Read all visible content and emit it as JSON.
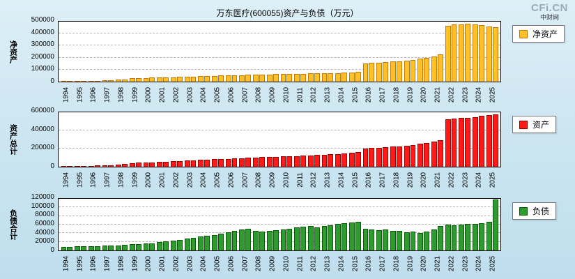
{
  "header": {
    "title": "万东医疗(600055)资产与负债（万元）",
    "watermark_line1": "CFi.CN",
    "watermark_line2": "中财网"
  },
  "chart_data": [
    {
      "type": "bar",
      "title": "净资产",
      "ylabel": "净资产",
      "legend": "净资产",
      "xlabel": "",
      "bar_color": "#FFC125",
      "bar_border": "#C87800",
      "ylim": [
        0,
        500000
      ],
      "yticks": [
        0,
        100000,
        200000,
        300000,
        400000,
        500000
      ],
      "grid": true,
      "legend_position": "right-top",
      "categories": [
        "1994",
        "1995",
        "1996",
        "1997",
        "1998",
        "1999",
        "2000",
        "2001",
        "2002",
        "2003",
        "2004",
        "2005",
        "2006",
        "2007",
        "2008",
        "2009",
        "2010",
        "2011",
        "2012",
        "2013",
        "2014",
        "2015",
        "2016",
        "2017",
        "2018",
        "2019",
        "2020",
        "2021",
        "2022",
        "2023",
        "2024",
        "2025"
      ],
      "values_per_category": 2,
      "series": [
        {
          "name": "净资产",
          "values": [
            4000,
            4500,
            5000,
            5500,
            6000,
            7000,
            9000,
            12000,
            15000,
            18000,
            28000,
            30000,
            32000,
            33000,
            34000,
            35000,
            37000,
            39000,
            41000,
            43000,
            45000,
            47000,
            49000,
            50000,
            51000,
            52000,
            54000,
            56000,
            58000,
            60000,
            61000,
            62000,
            63000,
            64000,
            65000,
            66000,
            67000,
            68000,
            69000,
            70000,
            72000,
            74000,
            76000,
            80000,
            150000,
            155000,
            158000,
            162000,
            166000,
            170000,
            175000,
            182000,
            190000,
            200000,
            210000,
            225000,
            465000,
            475000,
            478000,
            480000,
            478000,
            472000,
            462000,
            455000
          ]
        }
      ]
    },
    {
      "type": "bar",
      "title": "资产总计",
      "ylabel": "资产总计",
      "legend": "资产",
      "xlabel": "",
      "bar_color": "#FF1A1A",
      "bar_border": "#990000",
      "ylim": [
        0,
        600000
      ],
      "yticks": [
        0,
        200000,
        400000,
        600000
      ],
      "grid": true,
      "legend_position": "right-top",
      "categories": [
        "1994",
        "1995",
        "1996",
        "1997",
        "1998",
        "1999",
        "2000",
        "2001",
        "2002",
        "2003",
        "2004",
        "2005",
        "2006",
        "2007",
        "2008",
        "2009",
        "2010",
        "2011",
        "2012",
        "2013",
        "2014",
        "2015",
        "2016",
        "2017",
        "2018",
        "2019",
        "2020",
        "2021",
        "2022",
        "2023",
        "2024",
        "2025"
      ],
      "values_per_category": 2,
      "series": [
        {
          "name": "资产",
          "values": [
            7000,
            8000,
            9000,
            10000,
            11000,
            13000,
            15000,
            18000,
            22000,
            28000,
            42000,
            45000,
            48000,
            50000,
            53000,
            56000,
            60000,
            63000,
            67000,
            72000,
            76000,
            79000,
            82000,
            85000,
            88000,
            92000,
            96000,
            100000,
            103000,
            106000,
            108000,
            110000,
            113000,
            116000,
            119000,
            122000,
            125000,
            128000,
            132000,
            136000,
            140000,
            146000,
            152000,
            160000,
            198000,
            205000,
            210000,
            215000,
            220000,
            226000,
            233000,
            242000,
            252000,
            265000,
            278000,
            295000,
            520000,
            530000,
            535000,
            540000,
            545000,
            558000,
            568000,
            578000
          ]
        }
      ]
    },
    {
      "type": "bar",
      "title": "负债合计",
      "ylabel": "负债合计",
      "legend": "负债",
      "xlabel": "",
      "bar_color": "#2E9B2E",
      "bar_border": "#0A5A0A",
      "ylim": [
        0,
        120000
      ],
      "yticks": [
        0,
        20000,
        40000,
        60000,
        80000,
        100000,
        120000
      ],
      "grid": true,
      "legend_position": "right-top",
      "categories": [
        "1994",
        "1995",
        "1996",
        "1997",
        "1998",
        "1999",
        "2000",
        "2001",
        "2002",
        "2003",
        "2004",
        "2005",
        "2006",
        "2007",
        "2008",
        "2009",
        "2010",
        "2011",
        "2012",
        "2013",
        "2014",
        "2015",
        "2016",
        "2017",
        "2018",
        "2019",
        "2020",
        "2021",
        "2022",
        "2023",
        "2024",
        "2025"
      ],
      "values_per_category": 2,
      "series": [
        {
          "name": "负债",
          "values": [
            8000,
            8500,
            9000,
            9500,
            10000,
            10500,
            11000,
            11500,
            12000,
            13000,
            14000,
            15000,
            16000,
            17000,
            19000,
            21000,
            23000,
            25000,
            27000,
            30000,
            32000,
            34000,
            36000,
            39000,
            42000,
            45000,
            48000,
            50000,
            45000,
            44000,
            46000,
            47000,
            49000,
            51000,
            53000,
            55000,
            57000,
            54000,
            56000,
            59000,
            61000,
            63000,
            65000,
            67000,
            50000,
            49000,
            47000,
            48000,
            45000,
            46000,
            42000,
            43000,
            40000,
            44000,
            48000,
            56000,
            60000,
            58000,
            60000,
            62000,
            62000,
            64000,
            66000,
            118000
          ]
        }
      ]
    }
  ]
}
